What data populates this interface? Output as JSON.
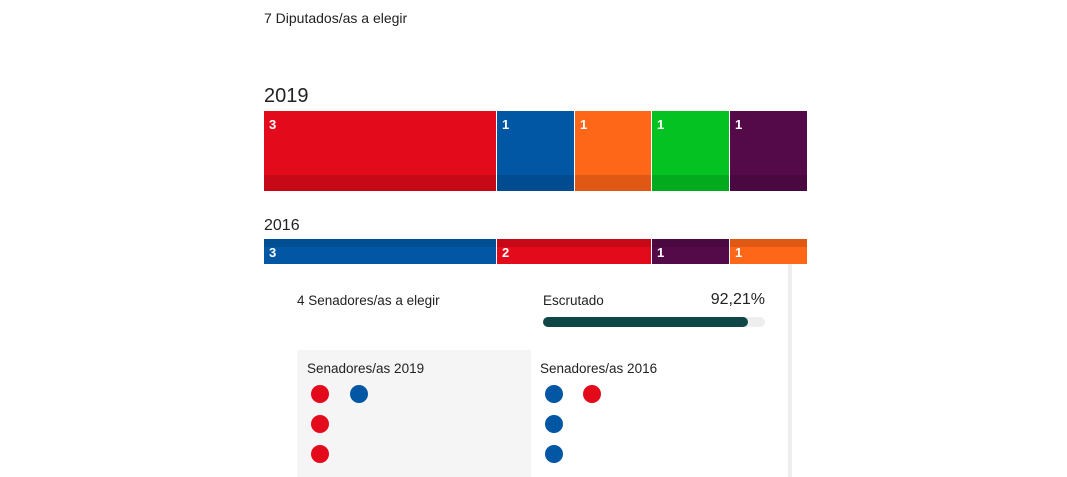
{
  "congress": {
    "seats_title": "7 Diputados/as a elegir",
    "y2019": {
      "year": "2019",
      "segments": [
        {
          "seats": "3",
          "color": "#e30a1b"
        },
        {
          "seats": "1",
          "color": "#0257a4"
        },
        {
          "seats": "1",
          "color": "#fe6618"
        },
        {
          "seats": "1",
          "color": "#03c221"
        },
        {
          "seats": "1",
          "color": "#540a49"
        }
      ]
    },
    "y2016": {
      "year": "2016",
      "segments": [
        {
          "seats": "3",
          "color": "#0257a4"
        },
        {
          "seats": "2",
          "color": "#e30a1b"
        },
        {
          "seats": "1",
          "color": "#540a49"
        },
        {
          "seats": "1",
          "color": "#fe6618"
        }
      ]
    }
  },
  "senate": {
    "title": "4 Senadores/as a elegir",
    "scrutiny": {
      "label": "Escrutado",
      "value": "92,21%",
      "fraction": 0.9221
    },
    "y2019": {
      "title": "Senadores/as 2019",
      "members": [
        "#e30a1b",
        "#0257a4",
        "#e30a1b",
        "#e30a1b"
      ]
    },
    "y2016": {
      "title": "Senadores/as 2016",
      "members": [
        "#0257a4",
        "#e30a1b",
        "#0257a4",
        "#0257a4"
      ]
    }
  }
}
